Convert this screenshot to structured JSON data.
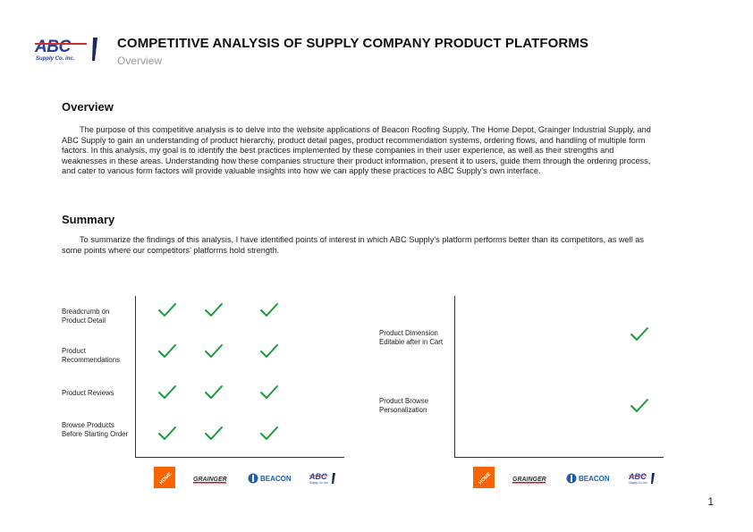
{
  "header": {
    "logo_text": "ABC",
    "logo_subtext": "Supply Co. inc.",
    "title": "COMPETITIVE ANALYSIS OF SUPPLY COMPANY PRODUCT PLATFORMS",
    "subtitle": "Overview"
  },
  "overview": {
    "heading": "Overview",
    "body": "The purpose of this competitive analysis is to delve into the website applications of Beacon Roofing Supply, The Home Depot, Grainger Industrial Supply, and ABC Supply to gain an understanding of product hierarchy, product detail pages, product recommendation systems, ordering flows, and handling of multiple form factors. In this analysis, my goal is to identify the best practices implemented by these companies in their user experience, as well as their strengths and weaknesses in these areas. Understanding how these companies structure their product information, present it to users, guide them through the ordering process, and cater to various form factors will provide valuable insights into how we can apply these practices to ABC Supply’s own interface."
  },
  "summary": {
    "heading": "Summary",
    "body": "To summarize the findings of this analysis, I have identified points of interest in which ABC Supply’s platform performs better than its competitors, as well as some points where our competitors’ platforms hold strength."
  },
  "brands": [
    {
      "name": "The Home Depot",
      "short": "HOME DEPOT",
      "color": "#f96302"
    },
    {
      "name": "Grainger",
      "short": "GRAINGER",
      "color": "#c8102e"
    },
    {
      "name": "Beacon",
      "short": "BEACON",
      "color": "#1f5fa8"
    },
    {
      "name": "ABC Supply",
      "short": "ABC",
      "color": "#2a3f9a"
    }
  ],
  "chart_left": {
    "rows": [
      {
        "label": "Breadcrumb on Product Detail",
        "checks": [
          true,
          true,
          true,
          false
        ]
      },
      {
        "label": "Product Recommendations",
        "checks": [
          true,
          true,
          true,
          false
        ]
      },
      {
        "label": "Product Reviews",
        "checks": [
          true,
          true,
          true,
          false
        ]
      },
      {
        "label": "Browse Products Before Starting Order",
        "checks": [
          true,
          true,
          true,
          false
        ]
      }
    ]
  },
  "chart_right": {
    "rows": [
      {
        "label": "Product Dimension Editable after in Cart",
        "checks": [
          false,
          false,
          false,
          true
        ]
      },
      {
        "label": "Product Browse Personalization",
        "checks": [
          false,
          false,
          false,
          true
        ]
      }
    ]
  },
  "colors": {
    "check": "#1a9a3a",
    "brand_blue": "#2a3f9a",
    "brand_red": "#d32f2f"
  },
  "page_number": "1"
}
